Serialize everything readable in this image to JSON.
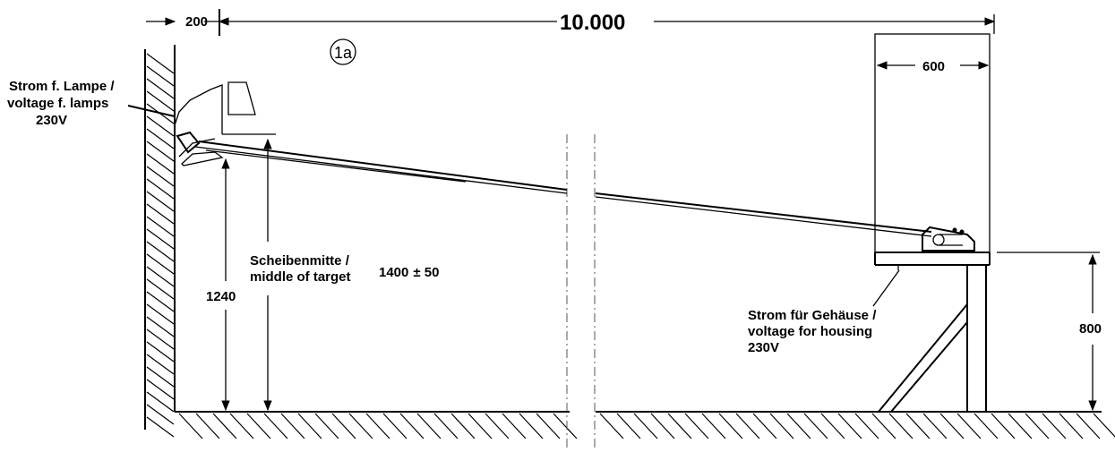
{
  "dimensions": {
    "wall_offset": "200",
    "total_length": "10.000",
    "housing_width": "600",
    "lamp_height": "1240",
    "housing_height": "800",
    "target_height": "1400",
    "target_tolerance": "± 50"
  },
  "position_marker": "1a",
  "labels": {
    "lamp_power_line1": "Strom f. Lampe /",
    "lamp_power_line2": "voltage f. lamps",
    "lamp_power_line3": "230V",
    "target_line1": "Scheibenmitte /",
    "target_line2": "middle of target",
    "housing_power_line1": "Strom für Gehäuse /",
    "housing_power_line2": "voltage for housing",
    "housing_power_line3": "230V"
  }
}
